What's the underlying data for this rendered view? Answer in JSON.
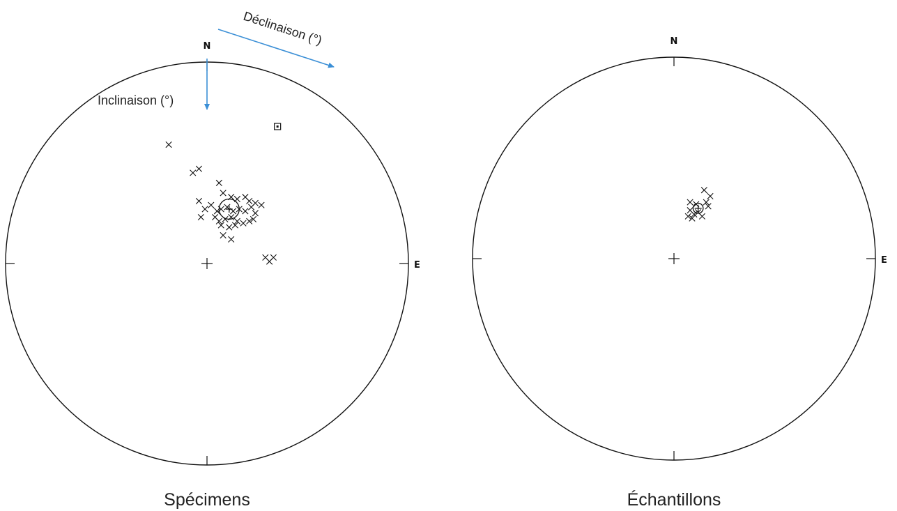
{
  "colors": {
    "arrow": "#3b8fd6",
    "ink": "#111111",
    "background": "#ffffff"
  },
  "plots": [
    {
      "caption": "Spécimens",
      "north_label": "N",
      "east_label": "E",
      "annotations": {
        "declination_label": "Déclinaison (°)",
        "inclination_label": "Inclinaison (°)"
      },
      "chart_data": {
        "type": "scatter",
        "projection": "equal-area stereonet",
        "series": [
          {
            "marker": "x",
            "points": [
              [
                -0.19,
                0.59
              ],
              [
                -0.07,
                0.45
              ],
              [
                -0.04,
                0.47
              ],
              [
                0.06,
                0.4
              ],
              [
                0.08,
                0.35
              ],
              [
                0.12,
                0.33
              ],
              [
                0.15,
                0.32
              ],
              [
                0.19,
                0.33
              ],
              [
                0.21,
                0.31
              ],
              [
                0.24,
                0.3
              ],
              [
                -0.04,
                0.31
              ],
              [
                -0.01,
                0.27
              ],
              [
                0.02,
                0.29
              ],
              [
                0.05,
                0.26
              ],
              [
                0.07,
                0.27
              ],
              [
                0.1,
                0.28
              ],
              [
                0.13,
                0.26
              ],
              [
                0.16,
                0.27
              ],
              [
                0.19,
                0.26
              ],
              [
                0.22,
                0.28
              ],
              [
                0.24,
                0.25
              ],
              [
                0.27,
                0.29
              ],
              [
                -0.03,
                0.23
              ],
              [
                0.04,
                0.23
              ],
              [
                0.06,
                0.21
              ],
              [
                0.09,
                0.22
              ],
              [
                0.12,
                0.23
              ],
              [
                0.15,
                0.21
              ],
              [
                0.18,
                0.2
              ],
              [
                0.21,
                0.21
              ],
              [
                0.23,
                0.22
              ],
              [
                0.07,
                0.19
              ],
              [
                0.11,
                0.18
              ],
              [
                0.14,
                0.19
              ],
              [
                0.08,
                0.14
              ],
              [
                0.12,
                0.12
              ],
              [
                0.29,
                0.03
              ],
              [
                0.31,
                0.01
              ],
              [
                0.33,
                0.03
              ]
            ]
          }
        ],
        "mean": {
          "x": 0.11,
          "y": 0.27,
          "a95_radius": 0.05
        },
        "outlier_square": {
          "x": 0.35,
          "y": 0.68
        }
      }
    },
    {
      "caption": "Échantillons",
      "north_label": "N",
      "east_label": "E",
      "chart_data": {
        "type": "scatter",
        "projection": "equal-area stereonet",
        "series": [
          {
            "marker": "x",
            "points": [
              [
                0.15,
                0.34
              ],
              [
                0.18,
                0.31
              ],
              [
                0.08,
                0.28
              ],
              [
                0.11,
                0.27
              ],
              [
                0.16,
                0.28
              ],
              [
                0.17,
                0.26
              ],
              [
                0.08,
                0.24
              ],
              [
                0.1,
                0.22
              ],
              [
                0.12,
                0.23
              ],
              [
                0.07,
                0.21
              ],
              [
                0.09,
                0.2
              ],
              [
                0.14,
                0.21
              ]
            ]
          }
        ],
        "mean": {
          "x": 0.12,
          "y": 0.25,
          "a95_radius": 0.025
        }
      }
    }
  ]
}
